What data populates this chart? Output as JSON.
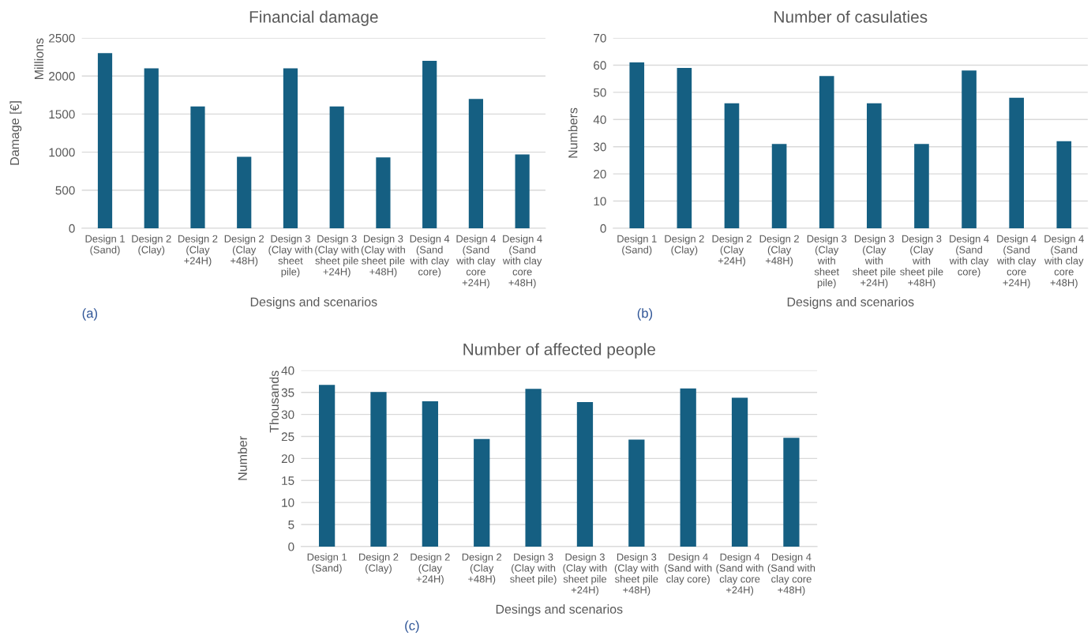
{
  "chart_data": [
    {
      "type": "bar",
      "title": "Financial damage",
      "xlabel": "Designs and scenarios",
      "ylabel": "Damage [€]",
      "categories": [
        "Design 1\n(Sand)",
        "Design 2\n(Clay)",
        "Design 2\n(Clay\n+24H)",
        "Design 2\n(Clay\n+48H)",
        "Design 3\n(Clay with\nsheet\npile)",
        "Design 3\n(Clay with\nsheet pile\n+24H)",
        "Design 3\n(Clay with\nsheet pile\n+48H)",
        "Design 4\n(Sand\nwith clay\ncore)",
        "Design 4\n(Sand\nwith clay\ncore\n+24H)",
        "Design 4\n(Sand\nwith clay\ncore\n+48H)"
      ],
      "values": [
        2300,
        2100,
        1600,
        940,
        2100,
        1600,
        930,
        2200,
        1700,
        970
      ],
      "color": "#155f82",
      "ylim": [
        0,
        2500
      ],
      "yticks": [
        0,
        500,
        1000,
        1500,
        2000,
        2500
      ],
      "grid": "y",
      "legend": false,
      "annotations": [
        "Millions",
        "(a)"
      ]
    },
    {
      "type": "bar",
      "title": "Number of casulaties",
      "xlabel": "Designs and scenarios",
      "ylabel": "Numbers",
      "categories": [
        "Design 1\n(Sand)",
        "Design 2\n(Clay)",
        "Design 2\n(Clay\n+24H)",
        "Design 2\n(Clay\n+48H)",
        "Design 3\n(Clay\nwith\nsheet\npile)",
        "Design 3\n(Clay\nwith\nsheet pile\n+24H)",
        "Design 3\n(Clay\nwith\nsheet pile\n+48H)",
        "Design 4\n(Sand\nwith clay\ncore)",
        "Design 4\n(Sand\nwith clay\ncore\n+24H)",
        "Design 4\n(Sand\nwith clay\ncore\n+48H)"
      ],
      "values": [
        61,
        59,
        46,
        31,
        56,
        46,
        31,
        58,
        48,
        32
      ],
      "color": "#155f82",
      "ylim": [
        0,
        70
      ],
      "yticks": [
        0,
        10,
        20,
        30,
        40,
        50,
        60,
        70
      ],
      "grid": "y",
      "legend": false,
      "annotations": [
        "(b)"
      ]
    },
    {
      "type": "bar",
      "title": "Number of affected people",
      "xlabel": "Desings and scenarios",
      "ylabel": "Number",
      "categories": [
        "Design 1\n(Sand)",
        "Design 2\n(Clay)",
        "Design 2\n(Clay\n+24H)",
        "Design 2\n(Clay\n+48H)",
        "Design 3\n(Clay with\nsheet pile)",
        "Design 3\n(Clay with\nsheet pile\n+24H)",
        "Design 3\n(Clay with\nsheet pile\n+48H)",
        "Design 4\n(Sand with\nclay core)",
        "Design 4\n(Sand with\nclay core\n+24H)",
        "Design 4\n(Sand with\nclay core\n+48H)"
      ],
      "values": [
        36.7,
        35.1,
        33.0,
        24.4,
        35.8,
        32.8,
        24.3,
        35.9,
        33.8,
        24.7
      ],
      "color": "#155f82",
      "ylim": [
        0,
        40
      ],
      "yticks": [
        0,
        5,
        10,
        15,
        20,
        25,
        30,
        35,
        40
      ],
      "grid": "y",
      "legend": false,
      "annotations": [
        "Thousands",
        "(c)"
      ]
    }
  ]
}
